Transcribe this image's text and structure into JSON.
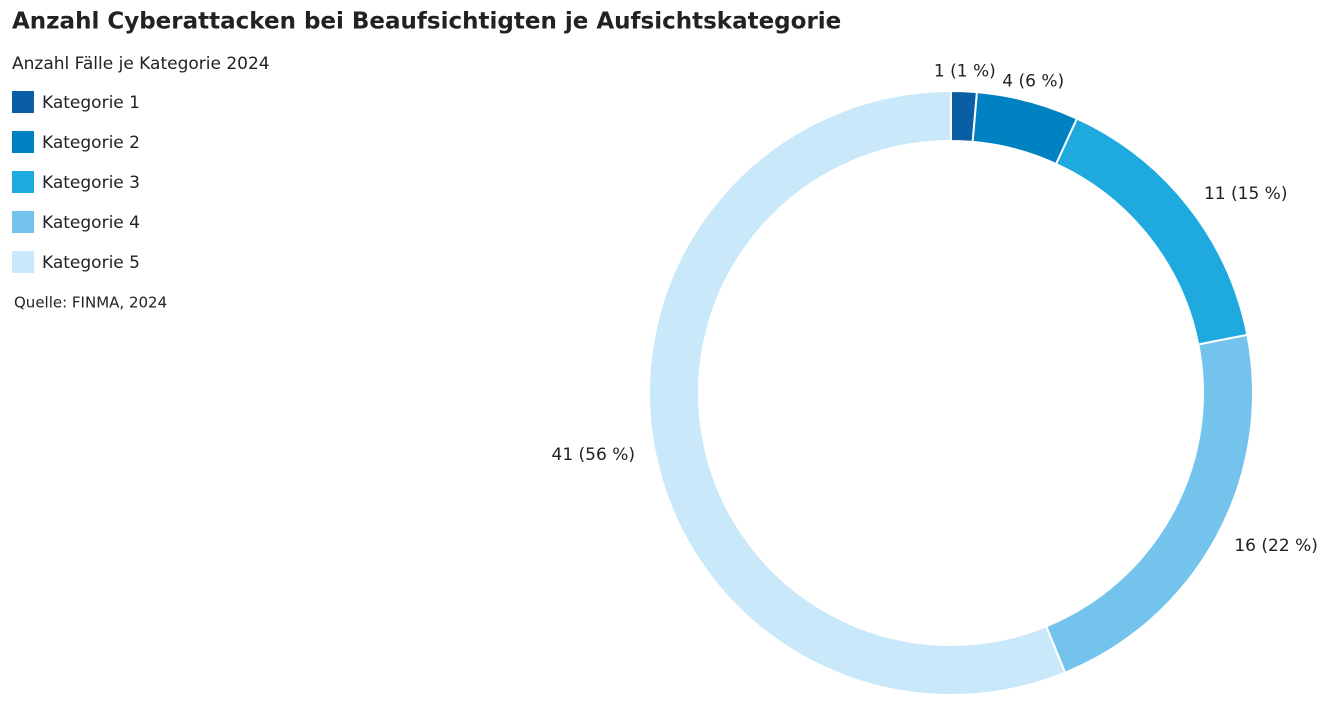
{
  "chart_data": {
    "type": "donut",
    "title": "Anzahl Cyberattacken bei Beaufsichtigten je Aufsichtskategorie",
    "subtitle": "Anzahl Fälle je Kategorie 2024",
    "source": "Quelle: FINMA, 2024",
    "categories": [
      "Kategorie 1",
      "Kategorie 2",
      "Kategorie 3",
      "Kategorie 4",
      "Kategorie 5"
    ],
    "values": [
      1,
      4,
      11,
      16,
      41
    ],
    "value_labels": [
      "1 (1 %)",
      "4 (6 %)",
      "11 (15 %)",
      "16 (22 %)",
      "41 (56 %)"
    ],
    "colors": [
      "#0a5ea6",
      "#0081c1",
      "#1eaadf",
      "#73c3ed",
      "#c9e9fa"
    ]
  }
}
